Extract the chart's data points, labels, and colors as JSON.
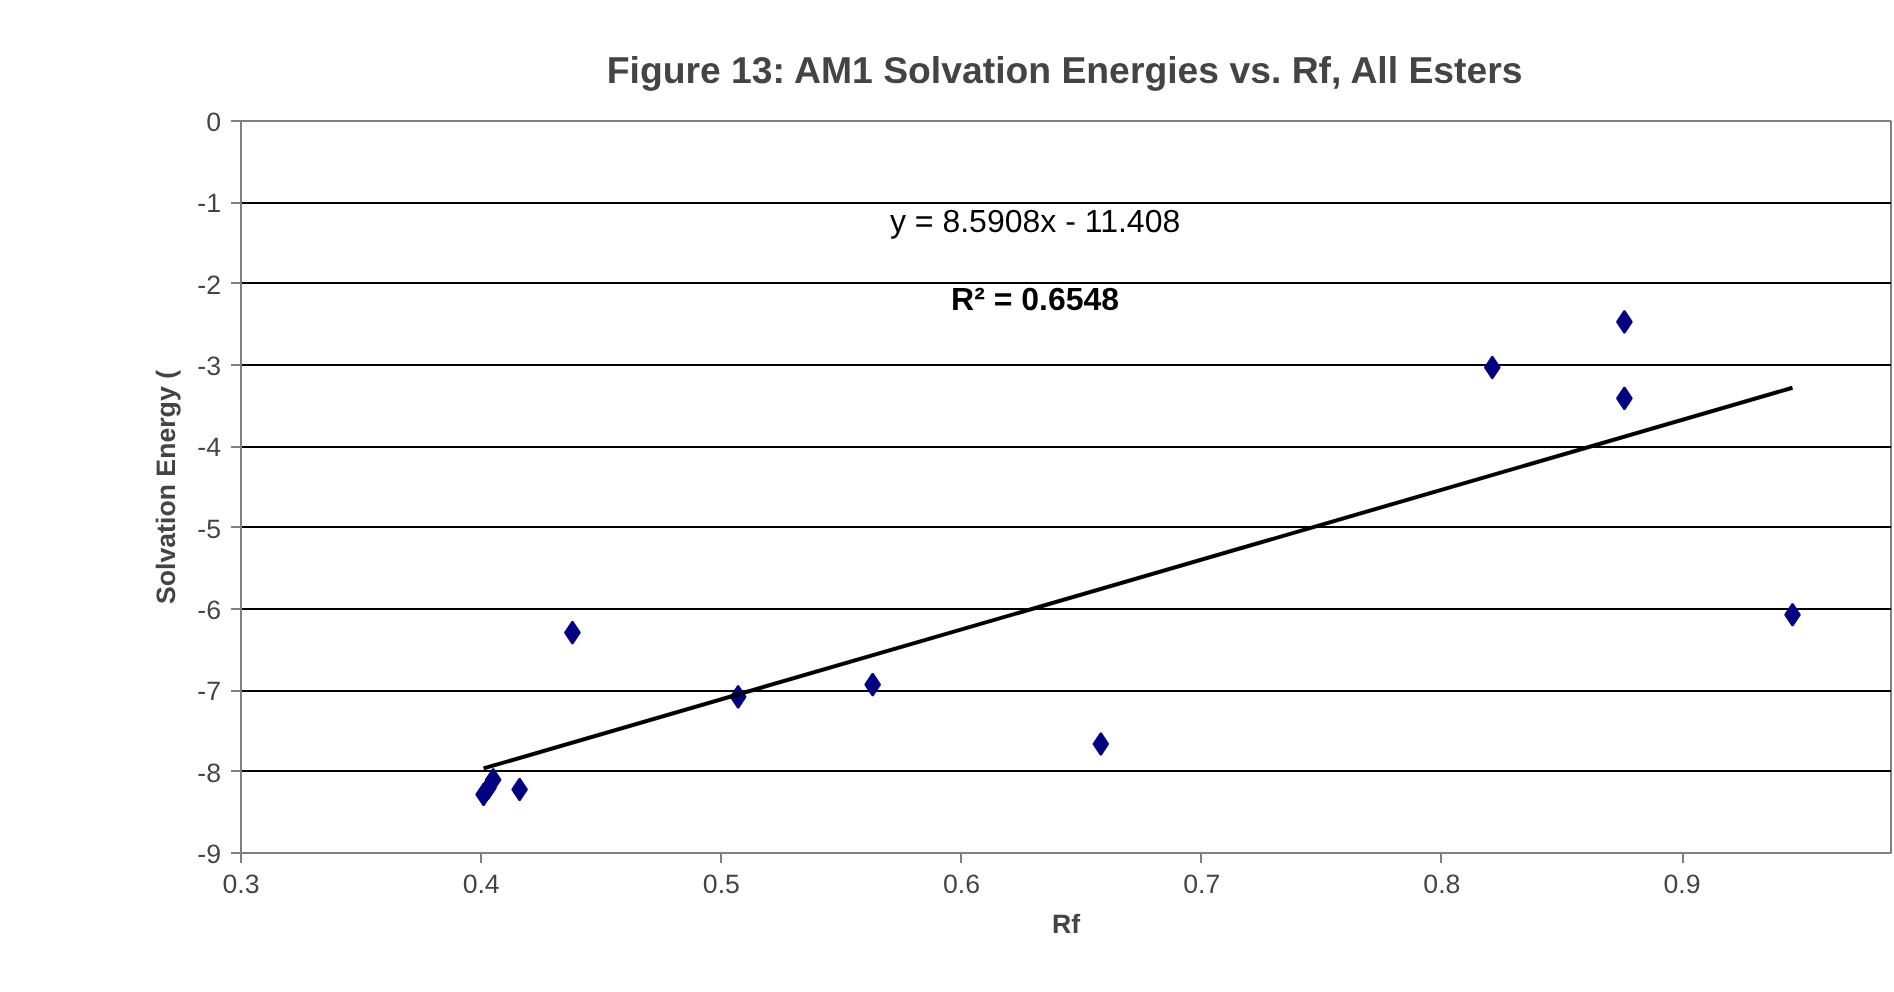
{
  "chart_data": {
    "type": "scatter",
    "title": "Figure 13: AM1 Solvation Energies vs. Rf, All Esters",
    "xlabel": "Rf",
    "ylabel": "Solvation Energy (",
    "annotations": [
      "y = 8.5908x - 11.408",
      "R² = 0.6548"
    ],
    "x": [
      0.401,
      0.403,
      0.405,
      0.416,
      0.438,
      0.507,
      0.563,
      0.658,
      0.821,
      0.876,
      0.876,
      0.946
    ],
    "series": [
      {
        "color": "#000080",
        "values": [
          -8.28,
          -8.2,
          -8.1,
          -8.22,
          -6.29,
          -7.08,
          -6.93,
          -7.66,
          -3.03,
          -2.47,
          -3.41,
          -6.07
        ]
      },
      {
        "type": "line",
        "color": "#000000",
        "marker": "none",
        "x": [
          0.401,
          0.946
        ],
        "values": [
          -7.96,
          -3.28
        ]
      }
    ],
    "xlim": [
      0.3,
      0.987
    ],
    "xticks": [
      0.3,
      0.4,
      0.5,
      0.6,
      0.7,
      0.8,
      0.9
    ],
    "ylim": [
      -9,
      0
    ],
    "yticks": [
      0,
      -1,
      -2,
      -3,
      -4,
      -5,
      -6,
      -7,
      -8,
      -9
    ],
    "grid": "y",
    "marker": "diamond"
  }
}
